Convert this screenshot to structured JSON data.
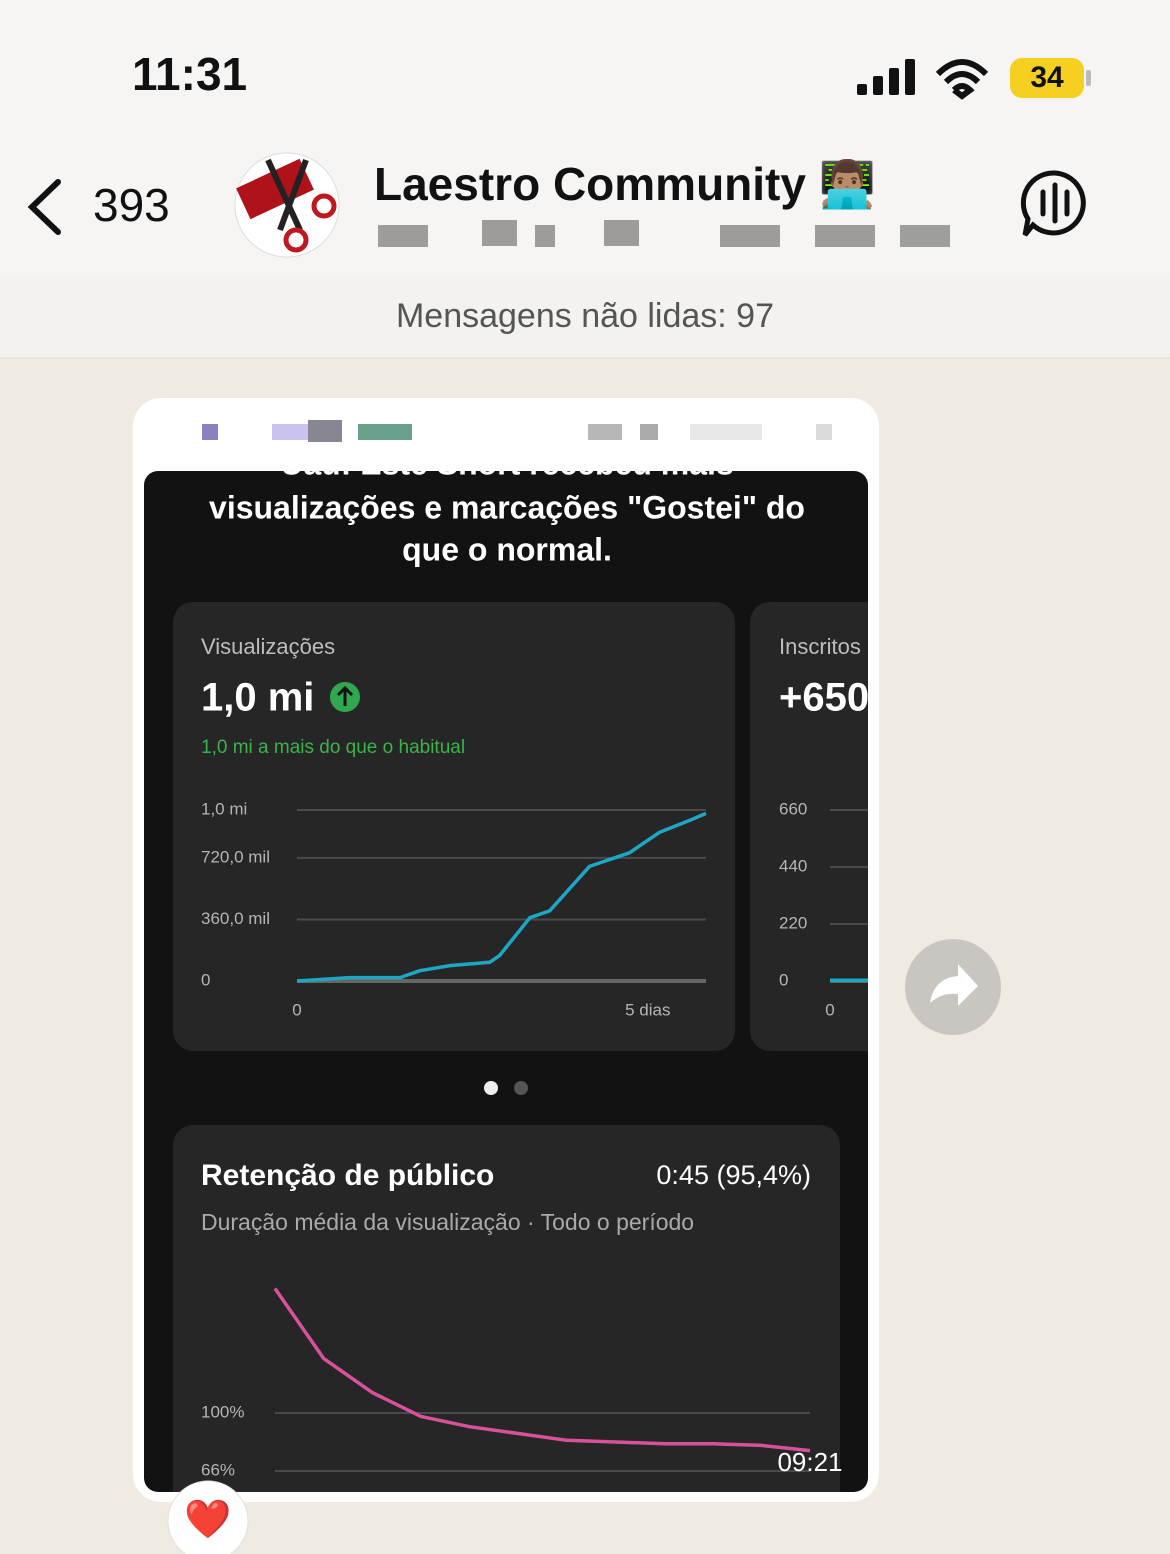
{
  "status_bar": {
    "time": "11:31",
    "battery": "34"
  },
  "header": {
    "back_count": "393",
    "title": "Laestro Community 👨🏽‍💻"
  },
  "unread_banner": "Mensagens não lidas: 97",
  "message": {
    "headline": [
      "Uau! Este Short recebeu mais",
      "visualizações e marcações \"Gostei\" do",
      "que o normal."
    ],
    "views_card": {
      "label": "Visualizações",
      "value": "1,0 mi",
      "note": "1,0 mi a mais do que o habitual",
      "chart": {
        "type": "line",
        "color": "#1ea7c5",
        "x": [
          0,
          0.75,
          1.47,
          1.75,
          2.18,
          2.75,
          2.89,
          3.32,
          3.6,
          4.17,
          4.74,
          5.17,
          5.6,
          5.83
        ],
        "values": [
          0,
          20000,
          20000,
          60000,
          90000,
          110000,
          150000,
          370000,
          410000,
          670000,
          750000,
          870000,
          940000,
          980000
        ],
        "xlim": [
          0,
          5.83
        ],
        "ylim": [
          0,
          1000000
        ],
        "xticks": [
          0,
          {
            "value": 5,
            "label": "5 dias"
          }
        ],
        "yticks": [
          0,
          {
            "value": 360000,
            "label": "360,0 mil"
          },
          {
            "value": 720000,
            "label": "720,0 mil"
          },
          {
            "value": 1000000,
            "label": "1,0 mi"
          }
        ]
      }
    },
    "subs_card": {
      "label": "Inscritos",
      "value": "+650",
      "chart": {
        "type": "line",
        "color": "#1ea7c5",
        "x": [
          0,
          0.6
        ],
        "values": [
          3,
          3
        ],
        "xlim": [
          0,
          5.83
        ],
        "ylim": [
          0,
          660
        ],
        "xticks": [
          0
        ],
        "yticks": [
          0,
          220,
          440,
          660
        ]
      }
    },
    "retention": {
      "title": "Retenção de público",
      "value": "0:45 (95,4%)",
      "subtitle": "Duração média da visualização · Todo o período",
      "chart": {
        "type": "line",
        "color": "#d8529b",
        "values": [
          173,
          132,
          112,
          98,
          92,
          88,
          84,
          83,
          82,
          82,
          81,
          78
        ],
        "ylim": [
          55,
          190
        ],
        "yticks": [
          {
            "value": 66,
            "label": "66%"
          },
          {
            "value": 100,
            "label": "100%"
          }
        ]
      }
    },
    "timestamp": "09:21",
    "reaction": "❤️"
  }
}
